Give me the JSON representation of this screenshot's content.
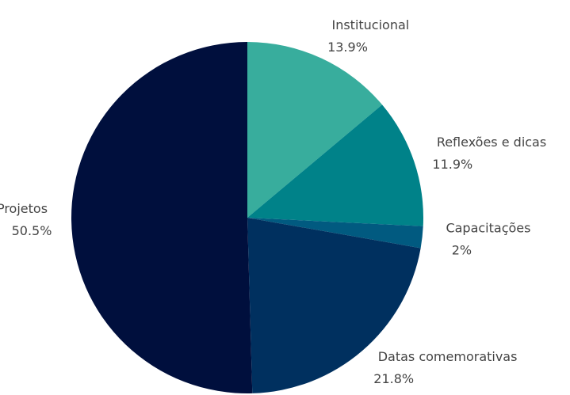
{
  "chart_data": {
    "type": "pie",
    "categories": [
      "Institucional",
      "Reflexões e dicas",
      "Capacitações",
      "Datas comemorativas",
      "Projetos"
    ],
    "values": [
      13.9,
      11.9,
      2,
      21.8,
      50.5
    ],
    "value_labels": [
      "13.9%",
      "11.9%",
      "2%",
      "21.8%",
      "50.5%"
    ],
    "colors": [
      "#38ad9d",
      "#008289",
      "#015a80",
      "#00305f",
      "#000f3d"
    ]
  }
}
